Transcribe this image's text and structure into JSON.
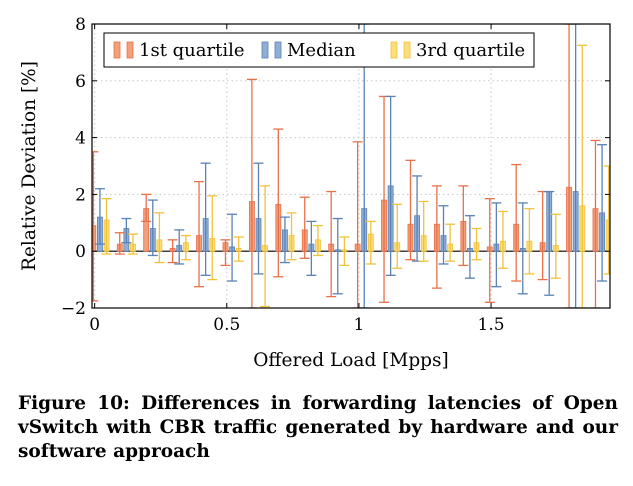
{
  "chart_data": {
    "type": "bar",
    "xlabel": "Offered Load [Mpps]",
    "ylabel": "Relative Deviation [%]",
    "xlim": [
      -0.01,
      1.95
    ],
    "ylim": [
      -2,
      8
    ],
    "xticks": [
      0,
      0.5,
      1,
      1.5
    ],
    "xtick_labels": [
      "0",
      "0.5",
      "1",
      "1.5"
    ],
    "yticks": [
      -2,
      0,
      2,
      4,
      6,
      8
    ],
    "ytick_labels": [
      "−2",
      "0",
      "2",
      "4",
      "6",
      "8"
    ],
    "grid": true,
    "legend_position": "top-left",
    "error_bars": true,
    "x": [
      0.02,
      0.12,
      0.22,
      0.32,
      0.42,
      0.52,
      0.62,
      0.72,
      0.82,
      0.92,
      1.02,
      1.12,
      1.22,
      1.32,
      1.42,
      1.52,
      1.62,
      1.72,
      1.82,
      1.92
    ],
    "series": [
      {
        "name": "1st quartile",
        "color": "#f2a07a",
        "stroke": "#e8704a",
        "values": [
          0.9,
          0.25,
          1.5,
          0.1,
          0.55,
          0.3,
          1.75,
          1.65,
          0.75,
          0.25,
          0.25,
          1.8,
          0.95,
          0.95,
          1.05,
          0.15,
          0.95,
          0.3,
          2.25,
          1.5
        ],
        "err_low": [
          -1.75,
          -0.1,
          1.05,
          -0.4,
          -1.25,
          -0.5,
          -2.0,
          -0.9,
          -0.25,
          -1.6,
          -2.0,
          -1.8,
          -0.3,
          -1.3,
          -0.5,
          -1.8,
          -1.05,
          -1.0,
          -2.0,
          -2.0
        ],
        "err_high": [
          3.5,
          0.65,
          2.0,
          0.4,
          2.45,
          0.4,
          6.05,
          4.3,
          1.9,
          2.1,
          3.85,
          5.45,
          3.2,
          2.3,
          2.3,
          1.85,
          3.05,
          2.1,
          8.0,
          3.9
        ]
      },
      {
        "name": "Median",
        "color": "#8fafd8",
        "stroke": "#5a82b4",
        "values": [
          1.2,
          0.8,
          0.8,
          0.2,
          1.15,
          0.15,
          1.15,
          0.75,
          0.25,
          0.05,
          1.5,
          2.3,
          1.25,
          0.55,
          0.1,
          0.25,
          0.1,
          2.1,
          2.1,
          1.35
        ],
        "err_low": [
          0.25,
          0.3,
          -0.15,
          -0.45,
          -0.85,
          -1.05,
          -0.8,
          -0.4,
          -0.85,
          -1.5,
          -2.0,
          -0.85,
          -0.35,
          -0.45,
          -0.95,
          -1.25,
          -1.5,
          -1.55,
          -2.0,
          -1.05
        ],
        "err_high": [
          2.2,
          1.15,
          1.8,
          0.75,
          3.1,
          1.3,
          3.1,
          1.2,
          1.05,
          1.15,
          8.0,
          5.45,
          2.65,
          1.6,
          1.25,
          1.7,
          1.7,
          2.1,
          8.0,
          3.75
        ]
      },
      {
        "name": "3rd quartile",
        "color": "#fddc7a",
        "stroke": "#f2c23a",
        "values": [
          1.1,
          0.25,
          0.4,
          0.3,
          0.45,
          0.1,
          0.2,
          0.55,
          0.4,
          0.05,
          0.6,
          0.3,
          0.55,
          0.25,
          0.3,
          0.35,
          0.35,
          0.2,
          1.6,
          1.1
        ],
        "err_low": [
          -0.1,
          -0.1,
          -0.4,
          -0.3,
          -1.0,
          -0.35,
          -1.95,
          -0.3,
          -0.15,
          -0.5,
          -0.45,
          -0.6,
          -0.35,
          -0.35,
          -0.3,
          -0.6,
          -0.8,
          -0.95,
          -2.0,
          -0.8
        ],
        "err_high": [
          1.85,
          0.6,
          1.35,
          0.55,
          1.95,
          0.5,
          2.3,
          1.35,
          0.9,
          0.5,
          1.05,
          1.65,
          1.75,
          0.95,
          0.8,
          1.4,
          1.5,
          1.3,
          7.25,
          3.0
        ]
      }
    ]
  },
  "caption": "Figure 10: Differences in forwarding latencies of Open vSwitch with CBR traffic generated by hardware and our software approach"
}
